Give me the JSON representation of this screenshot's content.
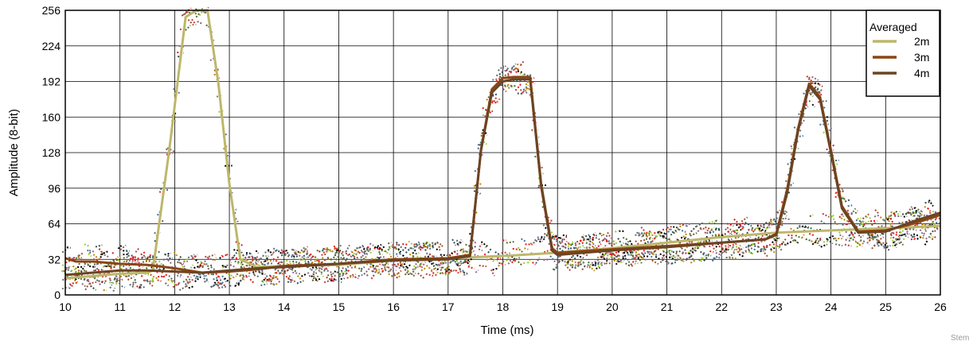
{
  "chart_data": {
    "type": "line",
    "title": "",
    "xlabel": "Time (ms)",
    "ylabel": "Amplitude (8-bit)",
    "xlim": [
      10,
      26
    ],
    "ylim": [
      0,
      256
    ],
    "x_ticks": [
      10,
      11,
      12,
      13,
      14,
      15,
      16,
      17,
      18,
      19,
      20,
      21,
      22,
      23,
      24,
      25,
      26
    ],
    "y_ticks": [
      0,
      32,
      64,
      96,
      128,
      160,
      192,
      224,
      256
    ],
    "grid": true,
    "legend": {
      "title": "Averaged",
      "placement": "top-right"
    },
    "series": [
      {
        "name": "2m",
        "color": "#bdb76b",
        "style": "solid",
        "x": [
          10,
          10.5,
          11,
          11.5,
          11.6,
          11.9,
          12.2,
          12.4,
          12.6,
          12.8,
          13.0,
          13.2,
          13.5,
          14,
          15,
          16,
          17,
          18,
          19,
          20,
          21,
          22,
          23,
          24,
          25,
          26
        ],
        "y": [
          15,
          17,
          19,
          20,
          22,
          130,
          250,
          256,
          256,
          190,
          100,
          32,
          25,
          26,
          27,
          31,
          33,
          35,
          38,
          42,
          47,
          52,
          56,
          58,
          60,
          62
        ]
      },
      {
        "name": "3m",
        "color": "#8b4513",
        "style": "solid",
        "x": [
          10,
          10.2,
          10.5,
          11,
          11.5,
          12,
          12.5,
          13,
          13.5,
          14,
          15,
          16,
          17,
          17.4,
          17.6,
          17.8,
          18.0,
          18.2,
          18.5,
          18.7,
          18.9,
          19,
          20,
          21,
          22,
          22.8,
          23.0,
          23.2,
          23.4,
          23.6,
          23.8,
          24.0,
          24.2,
          24.5,
          25,
          25.5,
          26
        ],
        "y": [
          33,
          30,
          30,
          28,
          27,
          24,
          20,
          21,
          23,
          26,
          28,
          32,
          33,
          36,
          130,
          185,
          195,
          196,
          196,
          100,
          42,
          38,
          41,
          44,
          47,
          50,
          55,
          95,
          150,
          190,
          178,
          130,
          80,
          57,
          58,
          64,
          72
        ]
      },
      {
        "name": "4m",
        "color": "#6b4423",
        "style": "solid",
        "x": [
          10,
          10.5,
          11,
          11.5,
          12,
          12.5,
          13,
          13.5,
          14,
          15,
          16,
          17,
          17.4,
          17.6,
          17.8,
          18.0,
          18.2,
          18.5,
          18.7,
          18.9,
          19,
          20,
          21,
          22,
          22.8,
          23.0,
          23.2,
          23.4,
          23.6,
          23.8,
          24.0,
          24.2,
          24.5,
          25,
          25.5,
          26
        ],
        "y": [
          18,
          20,
          22,
          22,
          21,
          20,
          22,
          24,
          25,
          28,
          31,
          32,
          35,
          130,
          182,
          192,
          194,
          194,
          98,
          40,
          36,
          40,
          43,
          47,
          50,
          54,
          92,
          148,
          188,
          176,
          128,
          78,
          56,
          57,
          66,
          74
        ]
      }
    ]
  },
  "footer": "Stem"
}
